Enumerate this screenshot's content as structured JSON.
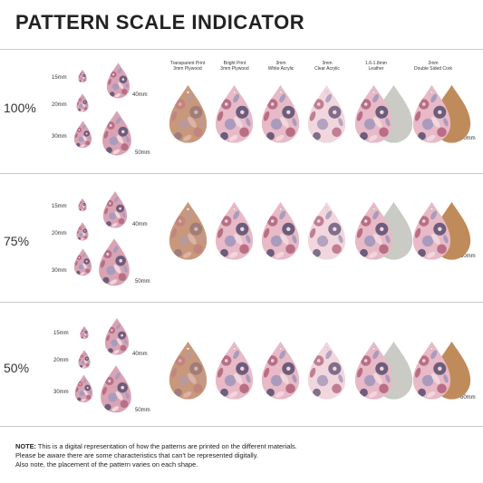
{
  "title": "PATTERN SCALE INDICATOR",
  "materials": [
    {
      "line1": "Transparent Print",
      "line2": "3mm Plywood"
    },
    {
      "line1": "Bright Print",
      "line2": "3mm Plywood"
    },
    {
      "line1": "3mm",
      "line2": "White Acrylic"
    },
    {
      "line1": "3mm",
      "line2": "Clear Acrylic"
    },
    {
      "line1": "1.6-1.8mm",
      "line2": "Leather"
    },
    {
      "line1": "2mm",
      "line2": "Double Sided Cork"
    }
  ],
  "rows": [
    {
      "scale": "100%",
      "sizes": {
        "s15": "15mm",
        "s20": "20mm",
        "s30": "30mm",
        "s40": "40mm",
        "s50": "50mm"
      },
      "shape_size": "60mm"
    },
    {
      "scale": "75%",
      "sizes": {
        "s15": "15mm",
        "s20": "20mm",
        "s30": "30mm",
        "s40": "40mm",
        "s50": "50mm"
      },
      "shape_size": "60mm"
    },
    {
      "scale": "50%",
      "sizes": {
        "s15": "15mm",
        "s20": "20mm",
        "s30": "30mm",
        "s40": "40mm",
        "s50": "50mm"
      },
      "shape_size": "60mm"
    }
  ],
  "note": {
    "label": "NOTE:",
    "line1": " This is a digital representation of how the patterns are printed on the different materials.",
    "line2": "Please be aware there are some characteristics that can't be represented digitally.",
    "line3": "Also note, the placement of the pattern varies on each shape."
  },
  "colors": {
    "pink": "#d9a3b3",
    "rose": "#b86f86",
    "plum": "#6d5d7c",
    "lilac": "#a99bbd",
    "blush": "#f1d6dd",
    "wood": "#c9987a",
    "leather": "#c9cbc4",
    "cork": "#c08b5b"
  }
}
